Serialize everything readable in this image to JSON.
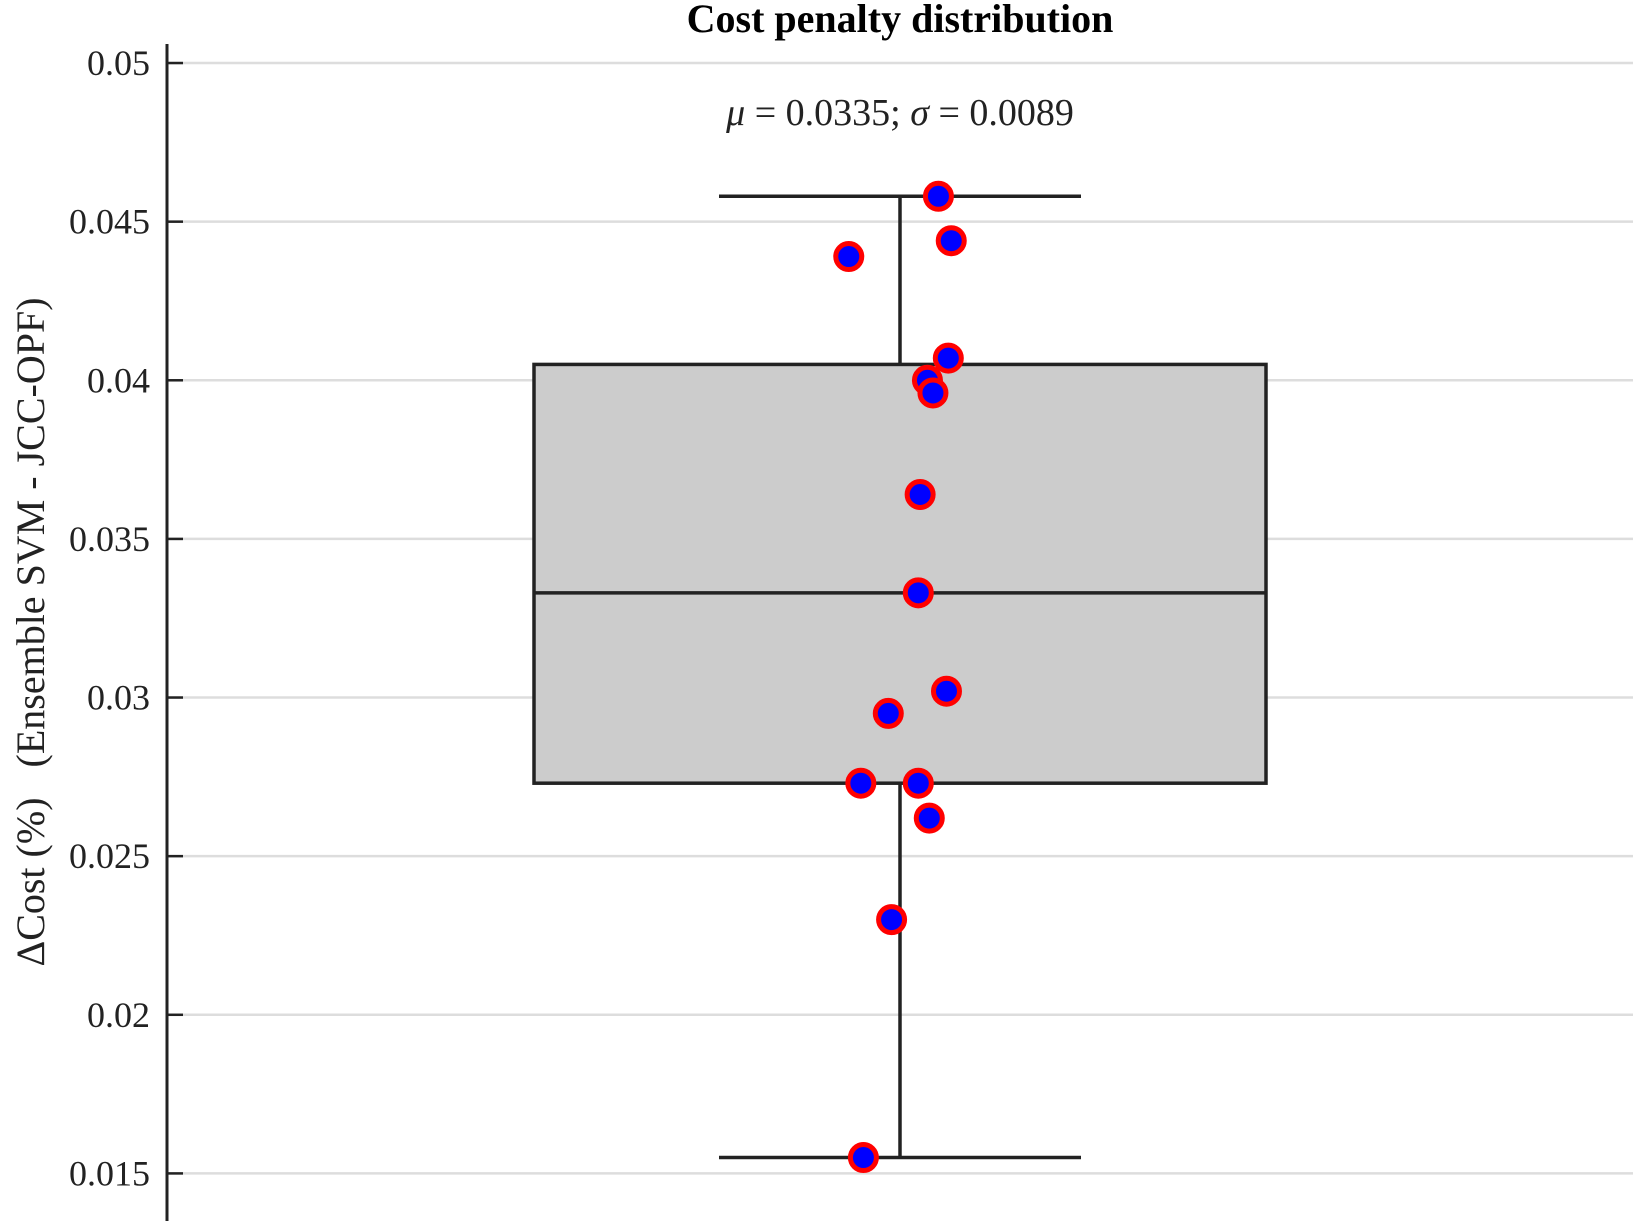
{
  "chart_data": {
    "type": "box",
    "title": "Cost penalty distribution",
    "ylabel": "ΔCost (%)   (Ensemble SVM - JCC-OPF)",
    "xlabel": "",
    "ylim": [
      0.0135,
      0.0506
    ],
    "yticks": [
      0.015,
      0.02,
      0.025,
      0.03,
      0.035,
      0.04,
      0.045,
      0.05
    ],
    "ytick_labels": [
      "0.015",
      "0.02",
      "0.025",
      "0.03",
      "0.035",
      "0.04",
      "0.045",
      "0.05"
    ],
    "grid": true,
    "annotation": {
      "mu_symbol": "μ",
      "mu_value": " = 0.0335; ",
      "sigma_symbol": "σ",
      "sigma_value": " = 0.0089"
    },
    "box": {
      "q1": 0.0273,
      "median": 0.0333,
      "q3": 0.0405,
      "whisker_low": 0.0155,
      "whisker_high": 0.0458,
      "fill_color": "#cccccc",
      "line_color": "#222222"
    },
    "points": {
      "face_color": "#0000ff",
      "edge_color": "#ff0000",
      "values": [
        {
          "jitter": 0.105,
          "y": 0.0458
        },
        {
          "jitter": 0.14,
          "y": 0.0444
        },
        {
          "jitter": -0.14,
          "y": 0.0439
        },
        {
          "jitter": 0.132,
          "y": 0.0407
        },
        {
          "jitter": 0.075,
          "y": 0.04
        },
        {
          "jitter": 0.09,
          "y": 0.0396
        },
        {
          "jitter": 0.055,
          "y": 0.0364
        },
        {
          "jitter": 0.05,
          "y": 0.0333
        },
        {
          "jitter": 0.127,
          "y": 0.0302
        },
        {
          "jitter": -0.032,
          "y": 0.0295
        },
        {
          "jitter": -0.107,
          "y": 0.0273
        },
        {
          "jitter": 0.05,
          "y": 0.0273
        },
        {
          "jitter": 0.08,
          "y": 0.0262
        },
        {
          "jitter": -0.023,
          "y": 0.023
        },
        {
          "jitter": -0.1,
          "y": 0.0155
        }
      ]
    }
  }
}
